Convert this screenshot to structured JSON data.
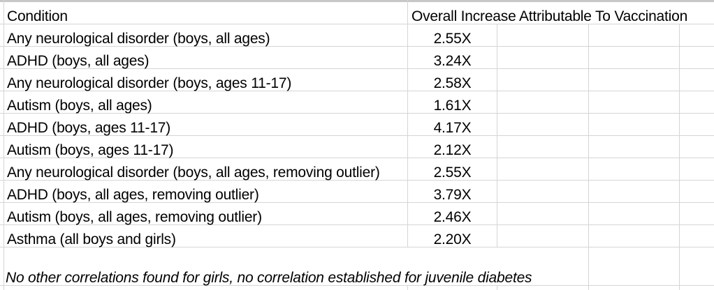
{
  "sheet": {
    "header": {
      "condition": "Condition",
      "value": "Overall Increase Attributable To Vaccination"
    },
    "rows": [
      {
        "condition": "Any neurological disorder (boys, all ages)",
        "value": "2.55X"
      },
      {
        "condition": "ADHD (boys, all ages)",
        "value": "3.24X"
      },
      {
        "condition": "Any neurological disorder (boys, ages 11-17)",
        "value": "2.58X"
      },
      {
        "condition": "Autism (boys, all ages)",
        "value": "1.61X"
      },
      {
        "condition": "ADHD (boys, ages 11-17)",
        "value": "4.17X"
      },
      {
        "condition": "Autism (boys, ages 11-17)",
        "value": "2.12X"
      },
      {
        "condition": "Any neurological disorder (boys, all ages, removing outlier)",
        "value": "2.55X"
      },
      {
        "condition": "ADHD (boys, all ages, removing outlier)",
        "value": "3.79X"
      },
      {
        "condition": "Autism (boys, all ages, removing outlier)",
        "value": "2.46X"
      },
      {
        "condition": "Asthma (all boys and girls)",
        "value": "2.20X"
      }
    ],
    "note": "No other correlations found for girls, no correlation established for juvenile diabetes"
  },
  "colors": {
    "background": "#ffffff",
    "gridline": "#d5d5d5",
    "top_edge": "#c7c7c7",
    "text": "#000000"
  }
}
